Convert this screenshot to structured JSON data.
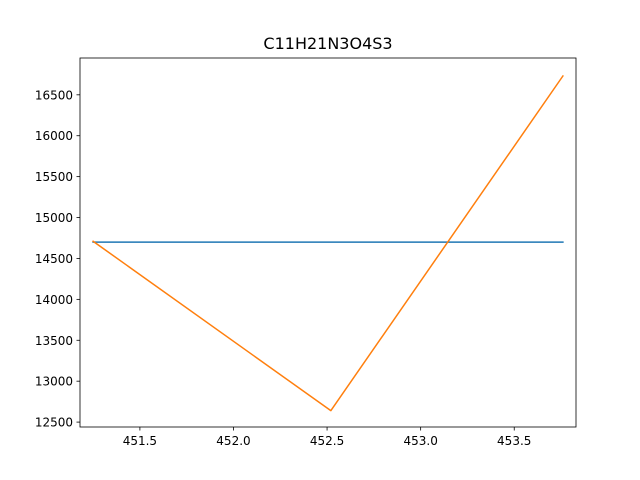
{
  "chart_data": {
    "type": "line",
    "title": "C11H21N3O4S3",
    "xlabel": "",
    "ylabel": "",
    "xlim": [
      451.18,
      453.83
    ],
    "ylim": [
      12440,
      16950
    ],
    "xticks": [
      451.5,
      452.0,
      452.5,
      453.0,
      453.5
    ],
    "xtick_labels": [
      "451.5",
      "452.0",
      "452.5",
      "453.0",
      "453.5"
    ],
    "yticks": [
      12500,
      13000,
      13500,
      14000,
      14500,
      15000,
      15500,
      16000,
      16500
    ],
    "ytick_labels": [
      "12500",
      "13000",
      "13500",
      "14000",
      "14500",
      "15000",
      "15500",
      "16000",
      "16500"
    ],
    "grid": false,
    "series": [
      {
        "color": "#1f77b4",
        "x": [
          451.25,
          453.76
        ],
        "y": [
          14700,
          14700
        ]
      },
      {
        "color": "#ff7f0e",
        "x": [
          451.25,
          452.52,
          453.76
        ],
        "y": [
          14710,
          12640,
          16730
        ]
      }
    ]
  }
}
